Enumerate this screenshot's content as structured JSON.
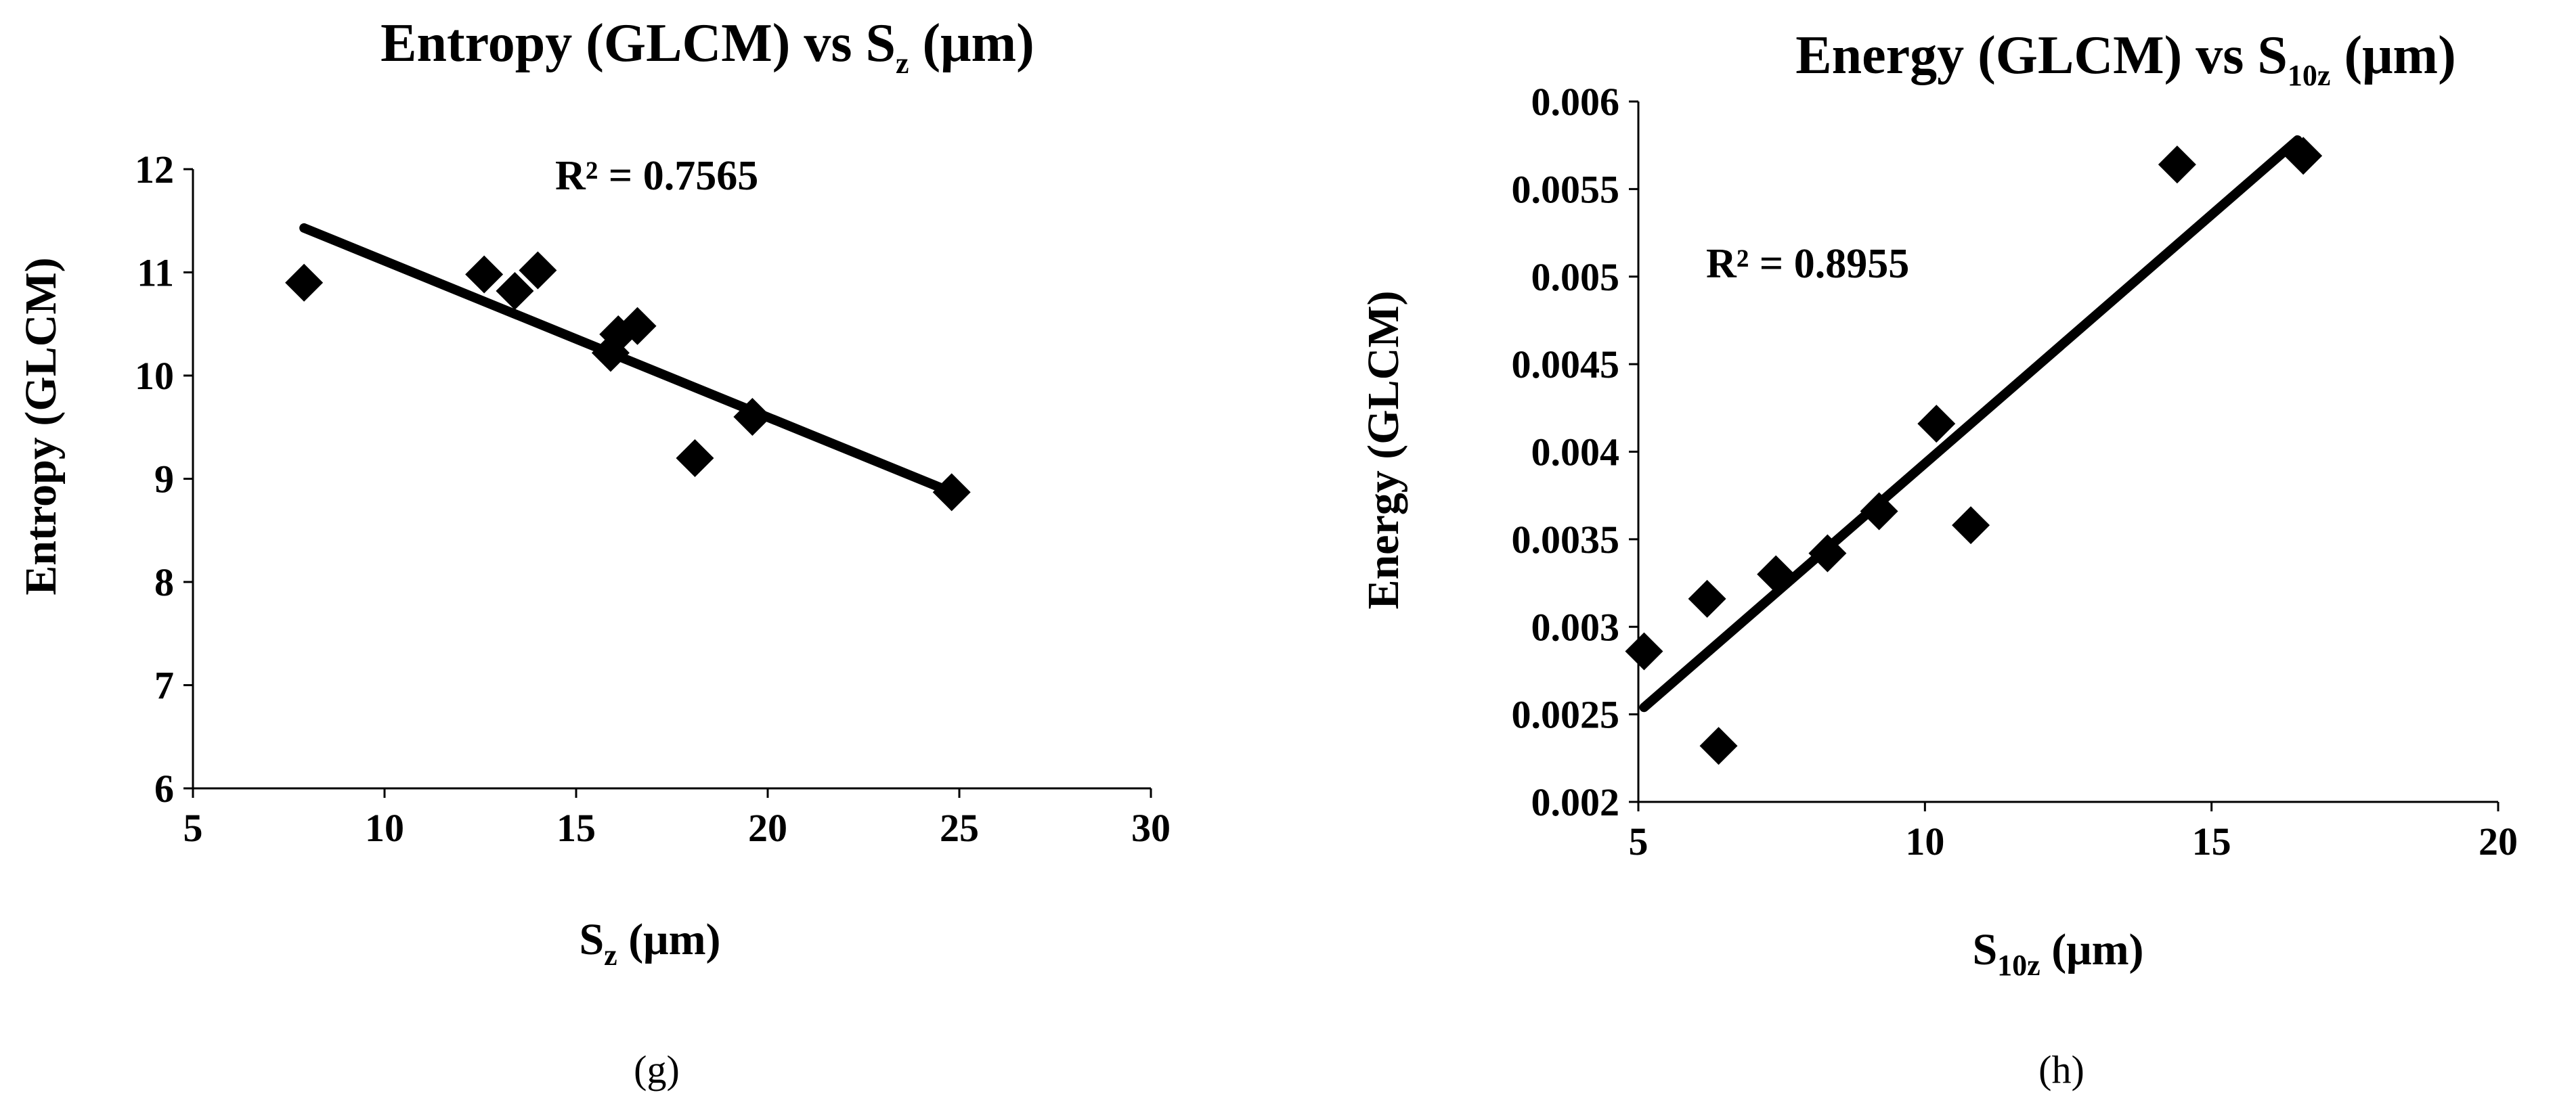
{
  "chart_data": [
    {
      "type": "scatter",
      "title_main": "Entropy (GLCM) vs S",
      "title_sub": "z",
      "title_unit": " (μm)",
      "xlabel_main": "S",
      "xlabel_sub": "z",
      "xlabel_unit": " (μm)",
      "ylabel": "Entropy (GLCM)",
      "xlim": [
        5,
        30
      ],
      "ylim": [
        6,
        12
      ],
      "xticks": [
        5,
        10,
        15,
        20,
        25,
        30
      ],
      "yticks": [
        6,
        7,
        8,
        9,
        10,
        11,
        12
      ],
      "x": [
        7.9,
        12.6,
        13.4,
        14.0,
        15.9,
        16.1,
        16.6,
        18.1,
        19.6,
        24.8
      ],
      "y": [
        10.9,
        10.98,
        10.82,
        11.02,
        10.22,
        10.4,
        10.48,
        9.2,
        9.6,
        8.87
      ],
      "trendline": {
        "x": [
          7.9,
          24.8
        ],
        "y": [
          11.43,
          8.87
        ]
      },
      "r_squared": "R² = 0.7565",
      "panel_label": "(g)",
      "marker": "diamond",
      "color": "#000000"
    },
    {
      "type": "scatter",
      "title_main": "Energy (GLCM) vs S",
      "title_sub": "10z",
      "title_unit": " (μm)",
      "xlabel_main": "S",
      "xlabel_sub": "10z",
      "xlabel_unit": " (μm)",
      "ylabel": "Energy (GLCM)",
      "xlim": [
        5,
        20
      ],
      "ylim": [
        0.002,
        0.006
      ],
      "xticks": [
        5,
        10,
        15,
        20
      ],
      "yticks": [
        0.002,
        0.0025,
        0.003,
        0.0035,
        0.004,
        0.0045,
        0.005,
        0.0055,
        0.006
      ],
      "ytick_labels": [
        "0.002",
        "0.0025",
        "0.003",
        "0.0035",
        "0.004",
        "0.0045",
        "0.005",
        "0.0055",
        "0.006"
      ],
      "x": [
        5.1,
        6.2,
        6.4,
        7.4,
        8.3,
        9.2,
        10.2,
        10.8,
        14.4,
        16.6
      ],
      "y": [
        0.00286,
        0.00316,
        0.00232,
        0.0033,
        0.00342,
        0.00366,
        0.00416,
        0.00358,
        0.00564,
        0.00569
      ],
      "trendline": {
        "x": [
          5.1,
          16.5
        ],
        "y": [
          0.00254,
          0.00578
        ]
      },
      "r_squared": "R² = 0.8955",
      "panel_label": "(h)",
      "marker": "diamond",
      "color": "#000000"
    }
  ]
}
